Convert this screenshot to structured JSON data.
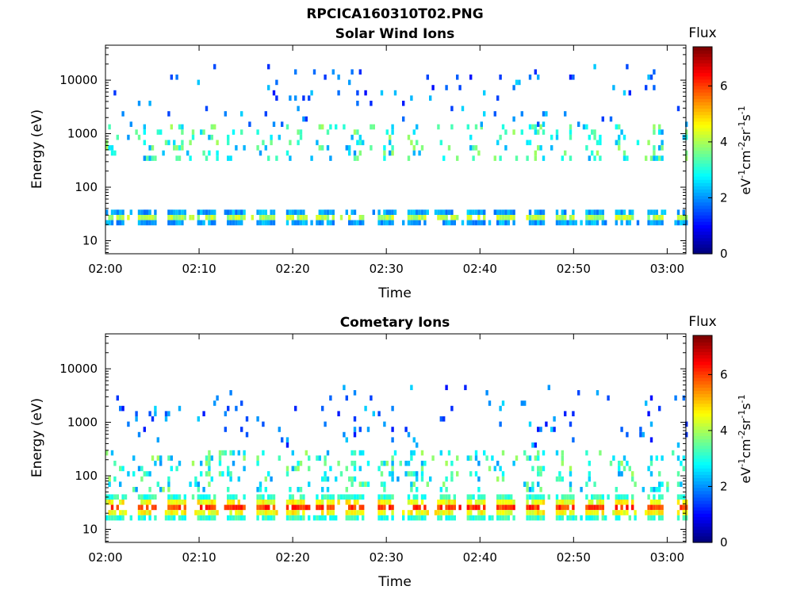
{
  "figure_title": "RPCICA160310T02.PNG",
  "colorbar": {
    "title": "Flux",
    "label_main": "eV",
    "label_rest": [
      "-1",
      "cm",
      "-2",
      "sr",
      "-1",
      "s",
      "-1"
    ],
    "range": [
      0,
      7.4
    ],
    "ticks": [
      "0",
      "2",
      "4",
      "6"
    ],
    "colormap": "jet"
  },
  "chart_data": [
    {
      "type": "heatmap",
      "title": "Solar Wind Ions",
      "xlabel": "Time",
      "ylabel": "Energy (eV)",
      "x_ticks": [
        "02:00",
        "02:10",
        "02:20",
        "02:30",
        "02:40",
        "02:50",
        "03:00"
      ],
      "x_range_minutes": [
        0,
        62
      ],
      "y_scale": "log",
      "y_ticks": [
        "10",
        "100",
        "1000",
        "10000"
      ],
      "ylim": [
        5.7,
        45000
      ],
      "bands": [
        {
          "energy_range": [
            20,
            38
          ],
          "flux_range": [
            2.5,
            4.5
          ],
          "description": "periodic low-energy band"
        },
        {
          "energy_range": [
            300,
            1500
          ],
          "flux_range": [
            2,
            4
          ],
          "description": "scattered mid-energy pixels"
        },
        {
          "energy_range": [
            1500,
            20000
          ],
          "flux_range": [
            1,
            2.5
          ],
          "description": "sparse high-energy pixels"
        }
      ]
    },
    {
      "type": "heatmap",
      "title": "Cometary Ions",
      "xlabel": "Time",
      "ylabel": "Energy (eV)",
      "x_ticks": [
        "02:00",
        "02:10",
        "02:20",
        "02:30",
        "02:40",
        "02:50",
        "03:00"
      ],
      "x_range_minutes": [
        0,
        62
      ],
      "y_scale": "log",
      "y_ticks": [
        "10",
        "100",
        "1000",
        "10000"
      ],
      "ylim": [
        5.7,
        45000
      ],
      "bands": [
        {
          "energy_range": [
            15,
            45
          ],
          "flux_range": [
            3.5,
            6.5
          ],
          "description": "intense periodic low-energy band"
        },
        {
          "energy_range": [
            45,
            300
          ],
          "flux_range": [
            2,
            4
          ],
          "description": "plumes above band"
        },
        {
          "energy_range": [
            300,
            5000
          ],
          "flux_range": [
            1,
            2.5
          ],
          "description": "sparse high-energy pixels"
        }
      ]
    }
  ]
}
